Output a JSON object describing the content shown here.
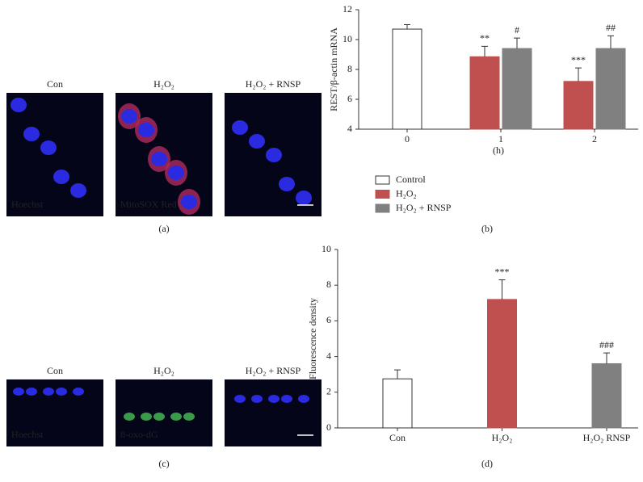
{
  "chart_data": [
    {
      "type": "bar",
      "panel": "(b)",
      "ylabel": "REST/β-actin mRNA",
      "xlabel": "(h)",
      "categories": [
        "0",
        "1",
        "2"
      ],
      "ylim": [
        4,
        12
      ],
      "yticks": [
        4,
        6,
        8,
        10,
        12
      ],
      "series": [
        {
          "name": "Control",
          "color": "#ffffff",
          "values": [
            10.7,
            null,
            null
          ],
          "errors": [
            0.3,
            null,
            null
          ],
          "annotations": [
            null,
            null,
            null
          ]
        },
        {
          "name": "H₂O₂",
          "color": "#c0504f",
          "values": [
            null,
            8.85,
            7.2
          ],
          "errors": [
            null,
            0.7,
            0.9
          ],
          "annotations": [
            null,
            "**",
            "***"
          ]
        },
        {
          "name": "H₂O₂ + RNSP",
          "color": "#808080",
          "values": [
            null,
            9.4,
            9.4
          ],
          "errors": [
            null,
            0.7,
            0.85
          ],
          "annotations": [
            null,
            "#",
            "##"
          ]
        }
      ],
      "legend": true
    },
    {
      "type": "bar",
      "panel": "(d)",
      "ylabel": "Fluorescence density",
      "categories": [
        "Con",
        "H₂O₂",
        "H₂O₂ RNSP"
      ],
      "ylim": [
        0,
        10
      ],
      "yticks": [
        0,
        2,
        4,
        6,
        8,
        10
      ],
      "series": [
        {
          "colors": [
            "#ffffff",
            "#c0504f",
            "#808080"
          ],
          "values": [
            2.75,
            7.2,
            3.6
          ],
          "errors": [
            0.5,
            1.1,
            0.6
          ],
          "annotations": [
            null,
            "***",
            "###"
          ]
        }
      ],
      "legend": false
    }
  ],
  "image_panels": [
    {
      "label": "(a)",
      "titles": [
        "Con",
        "H₂O₂",
        "H₂O₂ + RNSP"
      ],
      "stains": [
        "Hoechst",
        "MitoSOX Red"
      ]
    },
    {
      "label": "(c)",
      "titles": [
        "Con",
        "H₂O₂",
        "H₂O₂ + RNSP"
      ],
      "stains": [
        "Hoechst",
        "8-oxo-dG"
      ]
    }
  ]
}
